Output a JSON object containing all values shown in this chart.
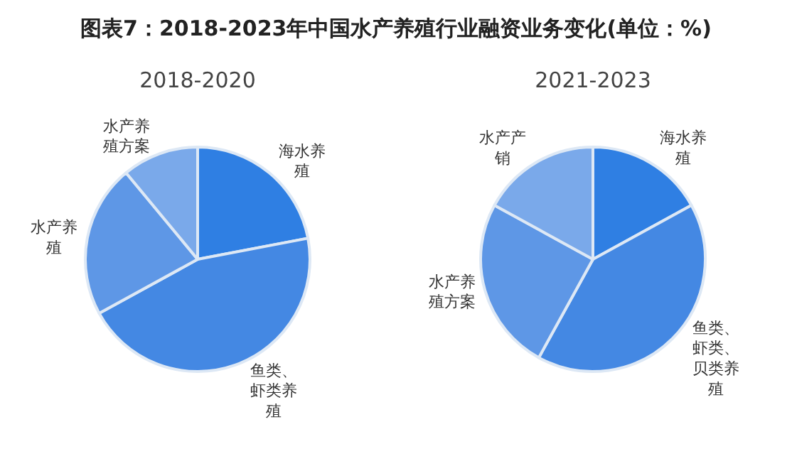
{
  "chart_data": [
    {
      "type": "pie",
      "title": "图表7：2018-2023年中国水产养殖行业融资业务变化(单位：%)",
      "subtitle": "2018-2020",
      "categories": [
        "海水养殖",
        "鱼类、虾类养殖",
        "水产养殖",
        "水产养殖方案"
      ],
      "values": [
        22,
        45,
        22,
        11
      ],
      "colors": [
        "#2f7fe3",
        "#4488e3",
        "#5e97e6",
        "#7aa9ea"
      ]
    },
    {
      "type": "pie",
      "subtitle": "2021-2023",
      "categories": [
        "海水养殖",
        "鱼类、虾类、贝类养殖",
        "水产养殖方案",
        "水产产销"
      ],
      "values": [
        17,
        41,
        25,
        17
      ],
      "colors": [
        "#2f7fe3",
        "#4488e3",
        "#5e97e6",
        "#7aa9ea"
      ]
    }
  ]
}
